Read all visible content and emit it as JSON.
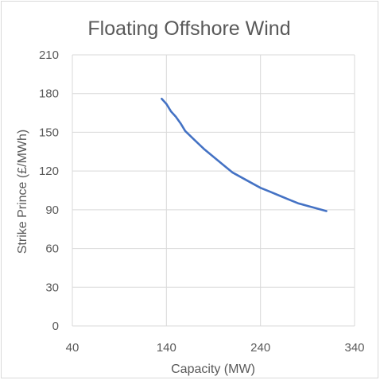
{
  "chart_data": {
    "type": "line",
    "title": "Floating Offshore Wind",
    "xlabel": "Capacity (MW)",
    "ylabel": "Strike Prince (£/MWh)",
    "xlim": [
      40,
      340
    ],
    "ylim": [
      0,
      210
    ],
    "xticks": [
      40,
      140,
      240,
      340
    ],
    "yticks": [
      0,
      30,
      60,
      90,
      120,
      150,
      180,
      210
    ],
    "grid": true,
    "legend": "none",
    "colors": {
      "line": "#4472c4",
      "grid": "#d9d9d9",
      "text": "#595959"
    },
    "series": [
      {
        "x": [
          135,
          140,
          145,
          150,
          155,
          160,
          170,
          180,
          190,
          200,
          210,
          220,
          230,
          240,
          250,
          260,
          270,
          280,
          290,
          300,
          310
        ],
        "y": [
          176,
          172,
          166,
          162,
          157,
          151,
          144,
          137,
          131,
          125,
          119,
          115,
          111,
          107,
          104,
          101,
          98,
          95,
          93,
          91,
          89
        ]
      }
    ]
  }
}
